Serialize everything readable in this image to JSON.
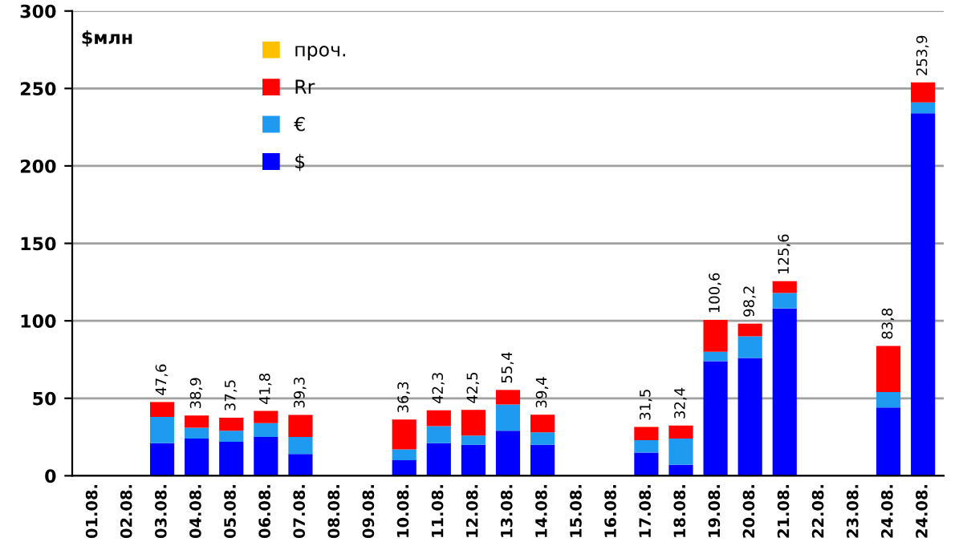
{
  "chart_data": {
    "type": "bar",
    "stacked": true,
    "ylabel": "$млн",
    "categories": [
      "01.08.",
      "02.08.",
      "03.08.",
      "04.08.",
      "05.08.",
      "06.08.",
      "07.08.",
      "08.08.",
      "09.08.",
      "10.08.",
      "11.08.",
      "12.08.",
      "13.08.",
      "14.08.",
      "15.08.",
      "16.08.",
      "17.08.",
      "18.08.",
      "19.08.",
      "20.08.",
      "21.08.",
      "22.08.",
      "23.08.",
      "24.08.",
      "24.08."
    ],
    "series": [
      {
        "name": "$",
        "color": "#0000ff",
        "values": [
          null,
          null,
          21,
          24,
          22,
          25,
          14,
          null,
          null,
          10,
          21,
          20,
          29,
          20,
          null,
          null,
          15,
          7,
          74,
          76,
          108,
          null,
          null,
          44,
          234
        ]
      },
      {
        "name": "€",
        "color": "#1e9bf0",
        "values": [
          null,
          null,
          17,
          7,
          7,
          9,
          11,
          null,
          null,
          7,
          11,
          6,
          17,
          8,
          null,
          null,
          8,
          17,
          6,
          14,
          10,
          null,
          null,
          10,
          7
        ]
      },
      {
        "name": "Rr",
        "color": "#ff0000",
        "values": [
          null,
          null,
          9.6,
          7.9,
          8.5,
          7.8,
          14.3,
          null,
          null,
          19.3,
          10.3,
          16.5,
          9.4,
          11.4,
          null,
          null,
          8.5,
          8.4,
          20.6,
          8.2,
          7.6,
          null,
          null,
          29.8,
          12.9
        ]
      },
      {
        "name": "проч.",
        "color": "#ffc000",
        "values": [
          null,
          null,
          null,
          null,
          null,
          null,
          null,
          null,
          null,
          null,
          null,
          null,
          null,
          null,
          null,
          null,
          null,
          null,
          null,
          null,
          null,
          null,
          null,
          null,
          null
        ]
      }
    ],
    "totals": [
      null,
      null,
      "47,6",
      "38,9",
      "37,5",
      "41,8",
      "39,3",
      null,
      null,
      "36,3",
      "42,3",
      "42,5",
      "55,4",
      "39,4",
      null,
      null,
      "31,5",
      "32,4",
      "100,6",
      "98,2",
      "125,6",
      null,
      null,
      "83,8",
      "253,9"
    ],
    "ylim": [
      0,
      300
    ],
    "yticks": [
      0,
      50,
      100,
      150,
      200,
      250,
      300
    ],
    "grid": "y",
    "legend": "top left"
  }
}
